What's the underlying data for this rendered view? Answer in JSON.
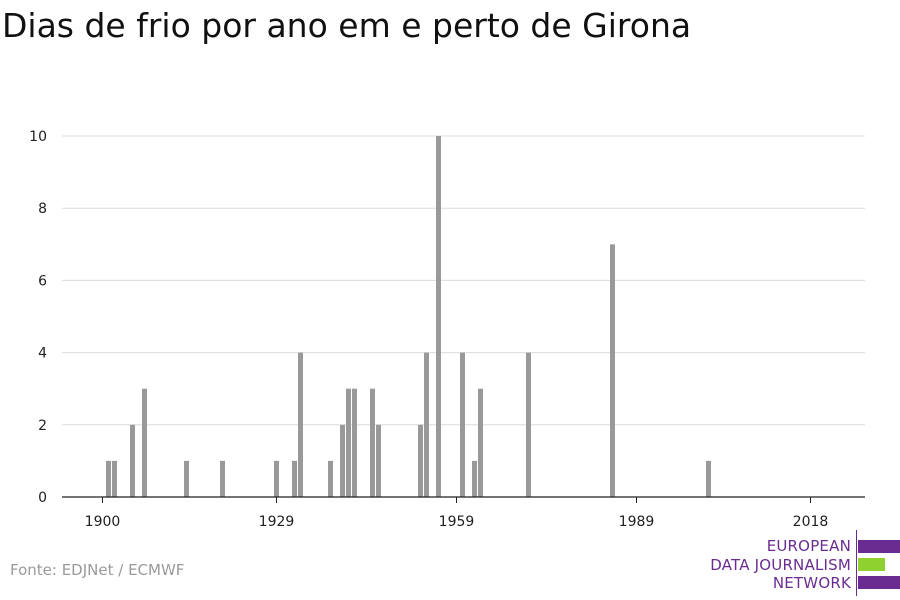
{
  "title": "Dias de frio por ano em e perto de Girona",
  "source": "Fonte: EDJNet / ECMWF",
  "logo": {
    "lines": [
      "EUROPEAN",
      "DATA JOURNALISM",
      "NETWORK"
    ],
    "colors": {
      "purple": "#6b2c91",
      "green": "#8fd12e"
    }
  },
  "chart_data": {
    "type": "bar",
    "title": "Dias de frio por ano em e perto de Girona",
    "xlabel": "",
    "ylabel": "",
    "xlim": [
      1893,
      2025
    ],
    "ylim": [
      0,
      10
    ],
    "x_ticks": [
      1900,
      1929,
      1959,
      1989,
      2018
    ],
    "y_ticks": [
      0,
      2,
      4,
      6,
      8,
      10
    ],
    "grid": true,
    "bar_color": "#999999",
    "x": [
      1901,
      1902,
      1905,
      1907,
      1914,
      1920,
      1929,
      1932,
      1933,
      1938,
      1940,
      1941,
      1942,
      1945,
      1946,
      1953,
      1954,
      1956,
      1960,
      1962,
      1963,
      1971,
      1985,
      2001
    ],
    "values": [
      1,
      1,
      2,
      3,
      1,
      1,
      1,
      1,
      4,
      1,
      2,
      3,
      3,
      3,
      2,
      2,
      4,
      10,
      4,
      1,
      3,
      4,
      7,
      1
    ]
  }
}
